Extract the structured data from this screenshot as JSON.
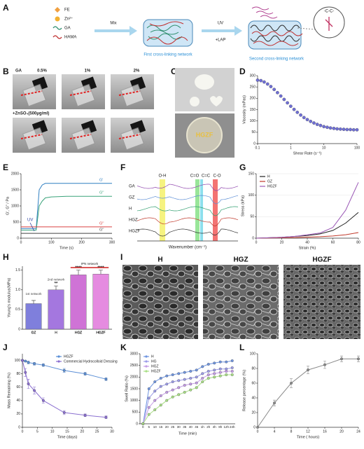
{
  "panel_labels": [
    "A",
    "B",
    "C",
    "D",
    "E",
    "F",
    "G",
    "H",
    "I",
    "J",
    "K",
    "L"
  ],
  "figure_a": {
    "legend": [
      "FE",
      "Zn²⁺",
      "GA",
      "HAMA"
    ],
    "step1": "Mix",
    "step2_top": "UV",
    "step2_bottom": "+LAP",
    "network1": "First cross-linking network",
    "network2": "Second cross-linking network",
    "bond": "-C-C-"
  },
  "figure_b": {
    "row_label": "GA",
    "columns": [
      "0.5%",
      "1%",
      "2%"
    ],
    "row2_label": "+ZnSO₄(500μg/ml)"
  },
  "figure_c": {
    "label": "HGZF"
  },
  "figure_f": {
    "samples": [
      "GA",
      "GZ",
      "H",
      "HGZ",
      "HGZF"
    ],
    "bands": [
      "O-H",
      "C=O",
      "C=C",
      "C-O"
    ],
    "x_label": "Wavenumber (cm⁻¹)"
  },
  "figure_i": {
    "labels": [
      "H",
      "HGZ",
      "HGZF"
    ]
  },
  "chart_data": [
    {
      "type": "scatter",
      "x_label": "Shear Rate (s⁻¹)",
      "y_label": "Viscosity (mPas)",
      "xlog": true,
      "x": [
        0.1,
        0.126,
        0.158,
        0.2,
        0.251,
        0.316,
        0.398,
        0.501,
        0.631,
        0.794,
        1,
        1.26,
        1.58,
        2,
        2.51,
        3.16,
        3.98,
        5.01,
        6.31,
        7.94,
        10,
        12.6,
        15.8,
        20,
        25.1,
        31.6,
        39.8,
        50.1,
        63.1,
        79.4,
        100
      ],
      "series": [
        {
          "name": "HGZF",
          "color": "#6f6fd6",
          "values": [
            280,
            278,
            272,
            263,
            252,
            239,
            225,
            210,
            195,
            180,
            165,
            151,
            138,
            126,
            115,
            106,
            98,
            91,
            85,
            80,
            75,
            72,
            69,
            67,
            65,
            64,
            63,
            62,
            62,
            61,
            61
          ]
        }
      ],
      "xlim": [
        0.1,
        100
      ],
      "xticks": [
        0.1,
        1,
        10,
        100
      ],
      "ylim": [
        0,
        300
      ],
      "yticks": [
        0,
        50,
        100,
        150,
        200,
        250,
        300
      ],
      "grid": false
    },
    {
      "type": "line",
      "x_label": "Time (s)",
      "y_label": "G', G'' / Pa",
      "annotation": "UV",
      "legend": "inline",
      "x": [
        0,
        20,
        40,
        50,
        60,
        70,
        80,
        100,
        150,
        200,
        250,
        300
      ],
      "series": [
        {
          "name": "G'",
          "color": "#2f7fc1",
          "values": [
            300,
            300,
            300,
            300,
            1500,
            1650,
            1700,
            1700,
            1700,
            1700,
            1700,
            1700
          ]
        },
        {
          "name": "G''",
          "color": "#3aa37a",
          "values": [
            250,
            250,
            250,
            250,
            1000,
            1150,
            1250,
            1280,
            1300,
            1300,
            1300,
            1300
          ]
        },
        {
          "name": "G''",
          "color": "#d94040",
          "values": [
            350,
            350,
            350,
            350,
            350,
            350,
            350,
            350,
            350,
            350,
            350,
            350
          ]
        },
        {
          "name": "G''",
          "color": "#444444",
          "values": [
            150,
            150,
            150,
            150,
            150,
            150,
            150,
            150,
            150,
            150,
            150,
            150
          ]
        }
      ],
      "xlim": [
        0,
        300
      ],
      "xticks": [
        0,
        100,
        200,
        300
      ],
      "ylim": [
        0,
        2000
      ],
      "yticks": [
        0,
        500,
        1000,
        1500,
        2000
      ],
      "grid": false
    },
    {
      "type": "line",
      "x_label": "Strain (%)",
      "y_label": "Stress (kPa)",
      "legend": "upper left",
      "x": [
        0,
        10,
        20,
        30,
        40,
        50,
        60,
        70,
        80
      ],
      "series": [
        {
          "name": "H",
          "color": "#222222",
          "values": [
            0,
            1,
            2,
            4,
            6,
            10,
            18,
            35,
            60
          ]
        },
        {
          "name": "GZ",
          "color": "#c0392b",
          "values": [
            0,
            0.5,
            1,
            1.5,
            2.5,
            3.5,
            5,
            8,
            13
          ]
        },
        {
          "name": "HGZF",
          "color": "#9b59b6",
          "values": [
            0,
            1,
            2,
            4,
            8,
            12,
            25,
            65,
            130
          ]
        }
      ],
      "xlim": [
        0,
        80
      ],
      "xticks": [
        0,
        20,
        40,
        60,
        80
      ],
      "ylim": [
        0,
        150
      ],
      "yticks": [
        0,
        50,
        100,
        150
      ],
      "grid": true
    },
    {
      "type": "bar",
      "y_label": "Young's modulus(MPa)",
      "categories": [
        "GZ",
        "H",
        "HGZ",
        "HGZF"
      ],
      "values": [
        0.65,
        1.0,
        1.38,
        1.4
      ],
      "errors": [
        0.08,
        0.1,
        0.12,
        0.1
      ],
      "colors": [
        "#7f7fdc",
        "#a477df",
        "#cf73d6",
        "#e58be0"
      ],
      "network_labels": [
        "1st network",
        "2nd network",
        null,
        null
      ],
      "significance": [
        null,
        "**",
        "****",
        "****"
      ],
      "group_label": "IPN network",
      "ylim": [
        0,
        1.6
      ],
      "yticks": [
        0,
        0.5,
        {
          "value": 1,
          "label": "1.0"
        },
        1.5
      ],
      "grid": false
    },
    {
      "type": "line",
      "x_label": "Time (days)",
      "y_label": "Mass Remaining (%)",
      "legend": "upper right",
      "markers": true,
      "x": [
        0,
        1,
        2,
        4,
        7,
        14,
        21,
        28
      ],
      "series": [
        {
          "name": "HGZF",
          "color": "#5b8fd6",
          "values": [
            100,
            99,
            97,
            95,
            93,
            85,
            80,
            72
          ],
          "errors": [
            1,
            1,
            2,
            2,
            2,
            3,
            2,
            2
          ]
        },
        {
          "name": "Commercial Hydrocolloid Dressing",
          "color": "#8a6fd0",
          "values": [
            100,
            82,
            65,
            55,
            40,
            22,
            18,
            15
          ],
          "errors": [
            0,
            6,
            7,
            5,
            4,
            3,
            2,
            2
          ]
        }
      ],
      "xlim": [
        0,
        30
      ],
      "xticks": [
        0,
        5,
        10,
        15,
        20,
        25,
        30
      ],
      "ylim": [
        0,
        110
      ],
      "yticks": [
        0,
        20,
        40,
        60,
        80,
        100
      ],
      "grid": false
    },
    {
      "type": "line",
      "x_label": "Time (min)",
      "y_label": "Swell Ratio (%)",
      "legend": "upper left",
      "markers": true,
      "categories": [
        "0",
        "5",
        "10",
        "15",
        "20",
        "25",
        "30",
        "35",
        "40",
        "45",
        "1h",
        "2h",
        "4h",
        "8h",
        "12h",
        "24h"
      ],
      "series": [
        {
          "name": "H",
          "color": "#6f95e0",
          "values": [
            0,
            1500,
            1800,
            1950,
            2050,
            2100,
            2150,
            2200,
            2250,
            2300,
            2450,
            2550,
            2600,
            2650,
            2650,
            2700
          ]
        },
        {
          "name": "HG",
          "color": "#9c9ce8",
          "values": [
            0,
            1100,
            1400,
            1600,
            1700,
            1800,
            1850,
            1900,
            1950,
            2000,
            2150,
            2250,
            2300,
            2350,
            2350,
            2400
          ]
        },
        {
          "name": "HGZ",
          "color": "#c49be6",
          "values": [
            0,
            700,
            1000,
            1200,
            1350,
            1450,
            1550,
            1650,
            1700,
            1750,
            1950,
            2100,
            2150,
            2200,
            2250,
            2250
          ]
        },
        {
          "name": "HGZF",
          "color": "#a9df85",
          "values": [
            0,
            400,
            600,
            800,
            1000,
            1150,
            1250,
            1350,
            1450,
            1550,
            1800,
            1950,
            2000,
            2050,
            2100,
            2100
          ]
        }
      ],
      "ylim": [
        0,
        3000
      ],
      "yticks": [
        0,
        500,
        1000,
        1500,
        2000,
        2500,
        3000
      ],
      "grid": false
    },
    {
      "type": "line",
      "x_label": "Time ( hours)",
      "y_label": "Release percentage (%)",
      "markers": true,
      "x": [
        0,
        4,
        8,
        12,
        16,
        20,
        24
      ],
      "series": [
        {
          "name": "HGZF",
          "color": "#8a8a8a",
          "values": [
            0,
            33,
            60,
            78,
            85,
            93,
            93
          ],
          "errors": [
            0,
            4,
            6,
            5,
            5,
            4,
            4
          ]
        }
      ],
      "xlim": [
        0,
        24
      ],
      "xticks": [
        0,
        4,
        8,
        12,
        16,
        20,
        24
      ],
      "ylim": [
        0,
        100
      ],
      "yticks": [
        0,
        20,
        40,
        60,
        80,
        100
      ],
      "grid": false
    }
  ]
}
